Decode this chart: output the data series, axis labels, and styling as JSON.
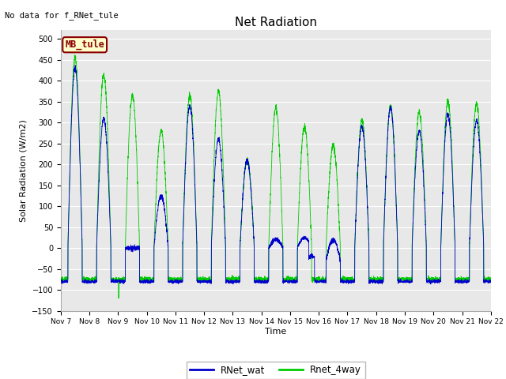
{
  "title": "Net Radiation",
  "xlabel": "Time",
  "ylabel": "Solar Radiation (W/m2)",
  "ylim": [
    -150,
    520
  ],
  "yticks": [
    -150,
    -100,
    -50,
    0,
    50,
    100,
    150,
    200,
    250,
    300,
    350,
    400,
    450,
    500
  ],
  "annotation_text": "No data for f_RNet_tule",
  "legend_box_label": "MB_tule",
  "legend_box_facecolor": "#FFFFCC",
  "legend_box_edgecolor": "#8B0000",
  "legend_box_textcolor": "#8B0000",
  "line1_color": "#0000CC",
  "line2_color": "#00CC00",
  "line1_label": "RNet_wat",
  "line2_label": "Rnet_4way",
  "fig_facecolor": "#FFFFFF",
  "axes_facecolor": "#E8E8E8",
  "grid_color": "#FFFFFF",
  "xtick_labels": [
    "Nov 7",
    "Nov 8",
    "Nov 9",
    "Nov 10",
    "Nov 11",
    "Nov 12",
    "Nov 13",
    "Nov 14",
    "Nov 15",
    "Nov 16",
    "Nov 17",
    "Nov 18",
    "Nov 19",
    "Nov 20",
    "Nov 21",
    "Nov 22"
  ],
  "num_days": 15,
  "pts_per_day": 288,
  "night_base_blue": -80,
  "night_base_green": -75,
  "day_peaks_blue": [
    430,
    310,
    0,
    125,
    340,
    260,
    210,
    20,
    25,
    -30,
    290,
    335,
    280,
    320,
    305
  ],
  "day_peaks_green": [
    455,
    415,
    365,
    280,
    365,
    375,
    210,
    335,
    290,
    245,
    305,
    340,
    325,
    350,
    345
  ]
}
